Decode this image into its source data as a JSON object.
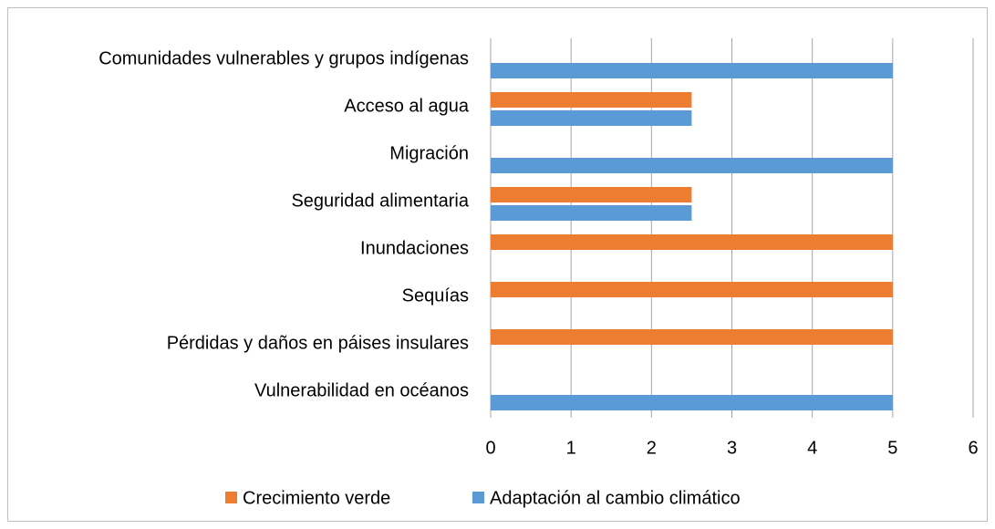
{
  "chart_data": {
    "type": "bar",
    "orientation": "horizontal",
    "categories": [
      "Comunidades vulnerables y grupos indígenas",
      "Acceso al agua",
      "Migración",
      "Seguridad alimentaria",
      "Inundaciones",
      "Sequías",
      "Pérdidas y daños en páises insulares",
      "Vulnerabilidad en océanos"
    ],
    "series": [
      {
        "name": "Crecimiento verde",
        "color": "#ed7d31",
        "values": [
          0,
          2.5,
          0,
          2.5,
          5,
          5,
          5,
          0
        ]
      },
      {
        "name": "Adaptación al cambio climático",
        "color": "#5b9bd5",
        "values": [
          5,
          2.5,
          5,
          2.5,
          0,
          0,
          0,
          5
        ]
      }
    ],
    "xlim": [
      0,
      6
    ],
    "xticks": [
      0,
      1,
      2,
      3,
      4,
      5,
      6
    ],
    "grid": true,
    "legend": "bottom"
  }
}
